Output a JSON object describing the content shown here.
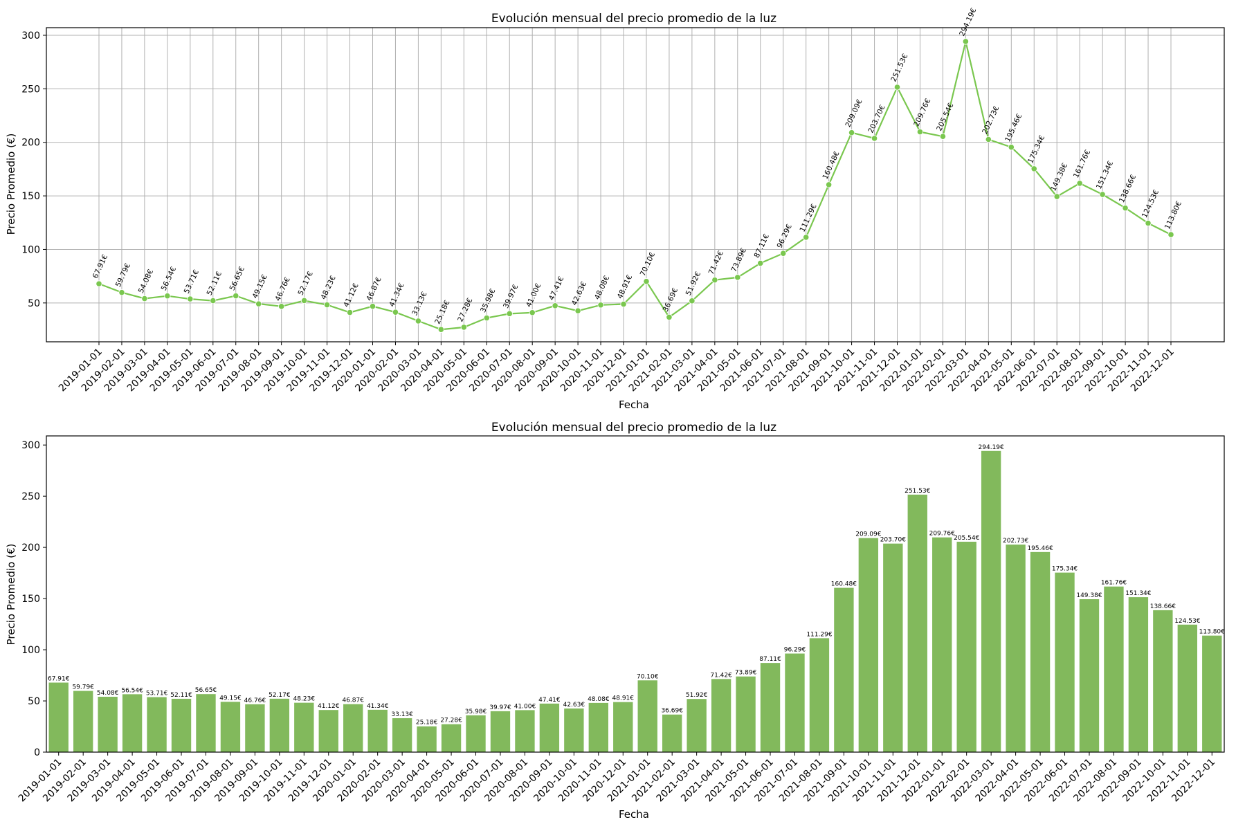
{
  "colors": {
    "series": "#7ac74f",
    "bar": "#82b95c",
    "grid": "#b0b0b0",
    "axis": "#000000"
  },
  "chart_data": [
    {
      "type": "line",
      "title": "Evolución mensual del precio promedio de la luz",
      "xlabel": "Fecha",
      "ylabel": "Precio Promedio (€)",
      "ylim": [
        13.7,
        307.1
      ],
      "yticks": [
        50,
        100,
        150,
        200,
        250,
        300
      ],
      "grid": true,
      "marker": "circle",
      "label_suffix": "€",
      "categories": [
        "2019-01-01",
        "2019-02-01",
        "2019-03-01",
        "2019-04-01",
        "2019-05-01",
        "2019-06-01",
        "2019-07-01",
        "2019-08-01",
        "2019-09-01",
        "2019-10-01",
        "2019-11-01",
        "2019-12-01",
        "2020-01-01",
        "2020-02-01",
        "2020-03-01",
        "2020-04-01",
        "2020-05-01",
        "2020-06-01",
        "2020-07-01",
        "2020-08-01",
        "2020-09-01",
        "2020-10-01",
        "2020-11-01",
        "2020-12-01",
        "2021-01-01",
        "2021-02-01",
        "2021-03-01",
        "2021-04-01",
        "2021-05-01",
        "2021-06-01",
        "2021-07-01",
        "2021-08-01",
        "2021-09-01",
        "2021-10-01",
        "2021-11-01",
        "2021-12-01",
        "2022-01-01",
        "2022-02-01",
        "2022-03-01",
        "2022-04-01",
        "2022-05-01",
        "2022-06-01",
        "2022-07-01",
        "2022-08-01",
        "2022-09-01",
        "2022-10-01",
        "2022-11-01",
        "2022-12-01"
      ],
      "values": [
        67.91,
        59.79,
        54.08,
        56.54,
        53.71,
        52.11,
        56.65,
        49.15,
        46.76,
        52.17,
        48.23,
        41.12,
        46.87,
        41.34,
        33.13,
        25.18,
        27.28,
        35.98,
        39.97,
        41.0,
        47.41,
        42.63,
        48.08,
        48.91,
        70.1,
        36.69,
        51.92,
        71.42,
        73.89,
        87.11,
        96.29,
        111.29,
        160.48,
        209.09,
        203.7,
        251.53,
        209.76,
        205.54,
        294.19,
        202.73,
        195.46,
        175.34,
        149.38,
        161.76,
        151.34,
        138.66,
        124.53,
        113.8
      ]
    },
    {
      "type": "bar",
      "title": "Evolución mensual del precio promedio de la luz",
      "xlabel": "Fecha",
      "ylabel": "Precio Promedio (€)",
      "ylim": [
        0,
        308.9
      ],
      "yticks": [
        0,
        50,
        100,
        150,
        200,
        250,
        300
      ],
      "grid": false,
      "label_suffix": "€",
      "categories": [
        "2019-01-01",
        "2019-02-01",
        "2019-03-01",
        "2019-04-01",
        "2019-05-01",
        "2019-06-01",
        "2019-07-01",
        "2019-08-01",
        "2019-09-01",
        "2019-10-01",
        "2019-11-01",
        "2019-12-01",
        "2020-01-01",
        "2020-02-01",
        "2020-03-01",
        "2020-04-01",
        "2020-05-01",
        "2020-06-01",
        "2020-07-01",
        "2020-08-01",
        "2020-09-01",
        "2020-10-01",
        "2020-11-01",
        "2020-12-01",
        "2021-01-01",
        "2021-02-01",
        "2021-03-01",
        "2021-04-01",
        "2021-05-01",
        "2021-06-01",
        "2021-07-01",
        "2021-08-01",
        "2021-09-01",
        "2021-10-01",
        "2021-11-01",
        "2021-12-01",
        "2022-01-01",
        "2022-02-01",
        "2022-03-01",
        "2022-04-01",
        "2022-05-01",
        "2022-06-01",
        "2022-07-01",
        "2022-08-01",
        "2022-09-01",
        "2022-10-01",
        "2022-11-01",
        "2022-12-01"
      ],
      "values": [
        67.91,
        59.79,
        54.08,
        56.54,
        53.71,
        52.11,
        56.65,
        49.15,
        46.76,
        52.17,
        48.23,
        41.12,
        46.87,
        41.34,
        33.13,
        25.18,
        27.28,
        35.98,
        39.97,
        41.0,
        47.41,
        42.63,
        48.08,
        48.91,
        70.1,
        36.69,
        51.92,
        71.42,
        73.89,
        87.11,
        96.29,
        111.29,
        160.48,
        209.09,
        203.7,
        251.53,
        209.76,
        205.54,
        294.19,
        202.73,
        195.46,
        175.34,
        149.38,
        161.76,
        151.34,
        138.66,
        124.53,
        113.8
      ]
    }
  ]
}
